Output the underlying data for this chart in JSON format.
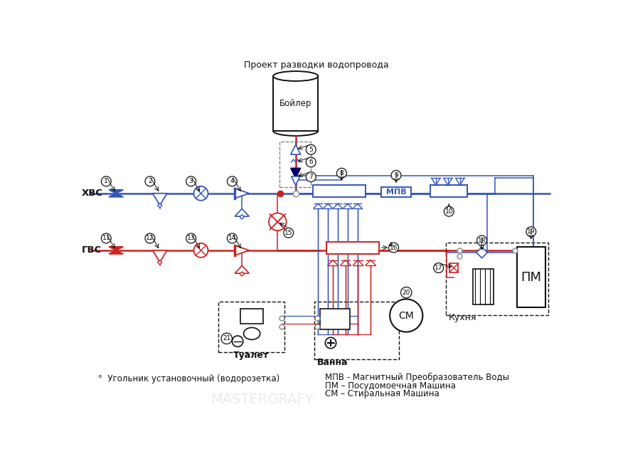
{
  "title": "Проект разводки водопровода",
  "lbl_hvs": "ХВС",
  "lbl_gvs": "ГВС",
  "lbl_boiler": "Бойлер",
  "lbl_mpv": "МПВ",
  "lbl_kitchen": "Кухня",
  "lbl_toilet": "Туалет",
  "lbl_bath": "Ванна",
  "lbl_pm": "ПМ",
  "lbl_cm": "СМ",
  "leg1": "°  Угольник установочный (водорозетка)",
  "leg2": "МПВ - Магнитный Преобразователь Воды",
  "leg3": "ПМ – Посудомоечная Машина",
  "leg4": "СМ – Стиральная Машина",
  "cold": "#3355bb",
  "hot": "#cc2222",
  "blk": "#111111",
  "gray": "#888888",
  "dkblue": "#000066",
  "bg": "#ffffff"
}
